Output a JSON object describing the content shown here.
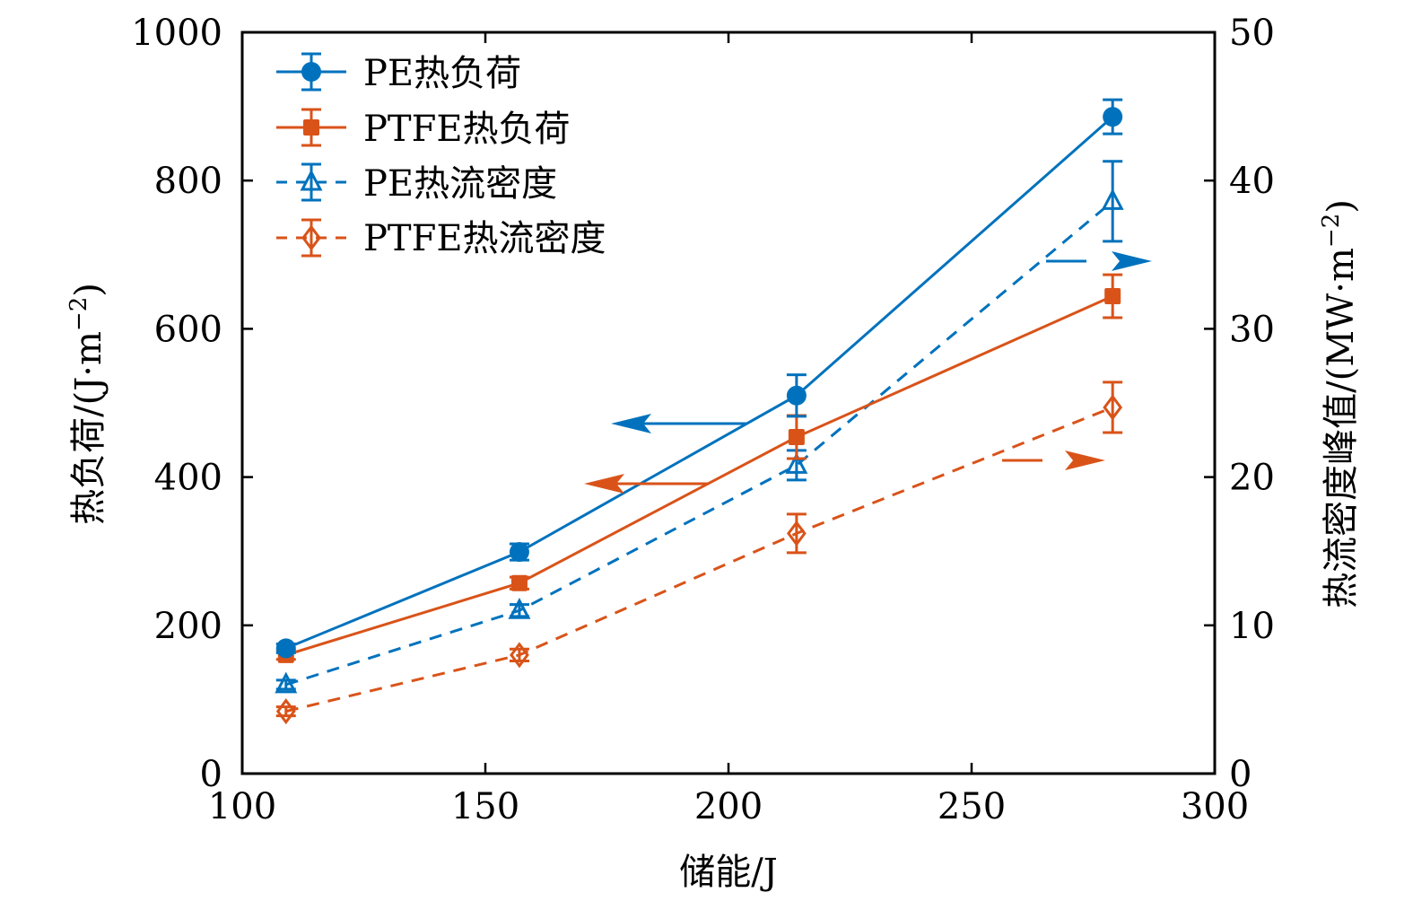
{
  "chart_data": {
    "type": "line",
    "title": "",
    "xlabel": "储能/J",
    "ylabel_left": "热负荷/(J·m",
    "ylabel_left_sup": "−2",
    "ylabel_left_close": ")",
    "ylabel_right": "热流密度峰值/(MW·m",
    "ylabel_right_sup": "−2",
    "ylabel_right_close": ")",
    "xlim": [
      100,
      300
    ],
    "ylim_left": [
      0,
      1000
    ],
    "ylim_right": [
      0,
      50
    ],
    "x_ticks": [
      "100",
      "150",
      "200",
      "250",
      "300"
    ],
    "x_tick_values": [
      100,
      150,
      200,
      250,
      300
    ],
    "y_left_ticks": [
      "0",
      "200",
      "400",
      "600",
      "800",
      "1000"
    ],
    "y_left_tick_values": [
      0,
      200,
      400,
      600,
      800,
      1000
    ],
    "y_right_ticks": [
      "0",
      "10",
      "20",
      "30",
      "40",
      "50"
    ],
    "y_right_tick_values": [
      0,
      10,
      20,
      30,
      40,
      50
    ],
    "grid": false,
    "legend_position": "top-left",
    "x": [
      109,
      157,
      214,
      279
    ],
    "series": [
      {
        "name": "PE热负荷",
        "axis": "left",
        "marker": "circle",
        "line": "solid",
        "color": "#0072bd",
        "values": [
          169,
          299,
          510,
          886
        ],
        "errors": [
          6,
          11,
          28,
          23
        ]
      },
      {
        "name": "PTFE热负荷",
        "axis": "left",
        "marker": "square",
        "line": "solid",
        "color": "#d95319",
        "values": [
          160,
          257,
          454,
          644
        ],
        "errors": [
          6,
          8,
          29,
          29
        ]
      },
      {
        "name": "PE热流密度",
        "axis": "right",
        "marker": "triangle",
        "line": "dashed",
        "color": "#0072bd",
        "values": [
          6.0,
          11.0,
          20.8,
          38.6
        ],
        "errors": [
          0.3,
          0.4,
          1.0,
          2.7
        ]
      },
      {
        "name": "PTFE热流密度",
        "axis": "right",
        "marker": "diamond",
        "line": "dashed",
        "color": "#d95319",
        "values": [
          4.2,
          8.0,
          16.2,
          24.7
        ],
        "errors": [
          0.3,
          0.4,
          1.3,
          1.7
        ]
      }
    ],
    "annotations": [
      {
        "type": "arrow",
        "direction": "left",
        "series": "PE热负荷",
        "color": "#0072bd",
        "meaning": "left-axis"
      },
      {
        "type": "arrow",
        "direction": "left",
        "series": "PTFE热负荷",
        "color": "#d95319",
        "meaning": "left-axis"
      },
      {
        "type": "arrow",
        "direction": "right",
        "series": "PE热流密度",
        "color": "#0072bd",
        "meaning": "right-axis"
      },
      {
        "type": "arrow",
        "direction": "right",
        "series": "PTFE热流密度",
        "color": "#d95319",
        "meaning": "right-axis"
      }
    ]
  }
}
